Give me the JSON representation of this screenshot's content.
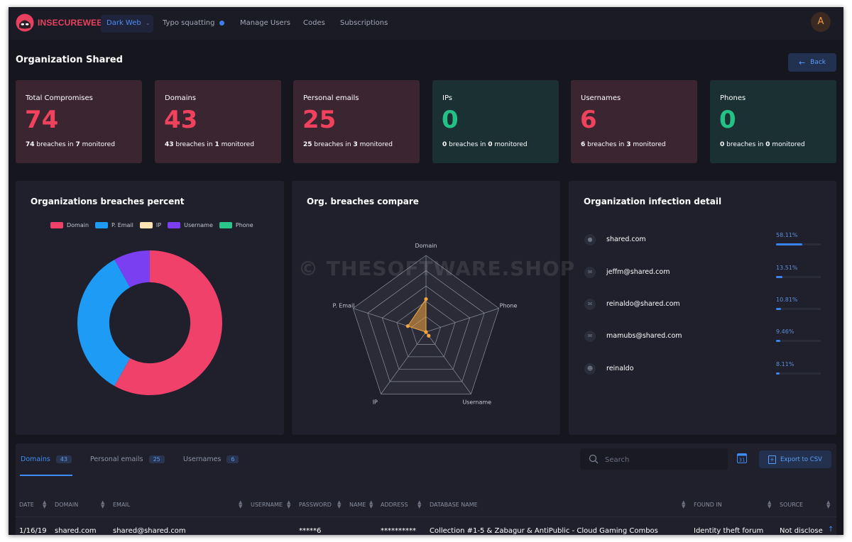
{
  "app": {
    "logo_text": "INSECUREWEB",
    "avatar_initial": "A"
  },
  "nav": [
    {
      "label": "Dark Web",
      "active": true
    },
    {
      "label": "Typo squatting"
    },
    {
      "label": "Manage Users"
    },
    {
      "label": "Codes"
    },
    {
      "label": "Subscriptions"
    }
  ],
  "page": {
    "title": "Organization Shared",
    "back_label": "Back"
  },
  "stats": [
    {
      "label": "Total Compromises",
      "value": "74",
      "breaches": "74",
      "monitored": "7"
    },
    {
      "label": "Domains",
      "value": "43",
      "breaches": "43",
      "monitored": "1"
    },
    {
      "label": "Personal emails",
      "value": "25",
      "breaches": "25",
      "monitored": "3"
    },
    {
      "label": "IPs",
      "value": "0",
      "breaches": "0",
      "monitored": "0"
    },
    {
      "label": "Usernames",
      "value": "6",
      "breaches": "6",
      "monitored": "3"
    },
    {
      "label": "Phones",
      "value": "0",
      "breaches": "0",
      "monitored": "0"
    }
  ],
  "stat_text": {
    "breaches_in": "breaches in",
    "monitored": "monitored"
  },
  "panels": {
    "donut_title": "Organizations breaches percent",
    "radar_title": "Org. breaches compare",
    "infection_title": "Organization infection detail"
  },
  "watermark": "© THESOFTWARE.SHOP",
  "chart_data": [
    {
      "type": "pie",
      "title": "Organizations breaches percent",
      "legend": "top",
      "categories": [
        "Domain",
        "P. Email",
        "IP",
        "Username",
        "Phone"
      ],
      "values": [
        43,
        25,
        0,
        6,
        0
      ],
      "colors": [
        "#f0416b",
        "#1e9bf4",
        "#fde4b2",
        "#7a3ff0",
        "#2bc48d"
      ],
      "inner_radius_ratio": 0.56
    },
    {
      "type": "radar",
      "title": "Org. breaches compare",
      "axes": [
        "Domain",
        "Phone",
        "Username",
        "IP",
        "P. Email"
      ],
      "values": [
        43,
        0,
        6,
        0,
        25
      ],
      "max": 100,
      "levels": 5,
      "color": "#f2a442"
    }
  ],
  "infection": [
    {
      "label": "shared.com",
      "percent": "58.11%",
      "fraction": 0.5811,
      "icon": "globe-icon"
    },
    {
      "label": "jeffm@shared.com",
      "percent": "13.51%",
      "fraction": 0.1351,
      "icon": "email-icon"
    },
    {
      "label": "reinaldo@shared.com",
      "percent": "10.81%",
      "fraction": 0.1081,
      "icon": "email-icon"
    },
    {
      "label": "mamubs@shared.com",
      "percent": "9.46%",
      "fraction": 0.0946,
      "icon": "email-icon"
    },
    {
      "label": "reinaldo",
      "percent": "8.11%",
      "fraction": 0.0811,
      "icon": "user-icon"
    }
  ],
  "table": {
    "tabs": [
      {
        "label": "Domains",
        "count": "43",
        "active": true
      },
      {
        "label": "Personal emails",
        "count": "25"
      },
      {
        "label": "Usernames",
        "count": "6"
      }
    ],
    "search_placeholder": "Search",
    "calendar_day": "31",
    "export_label": "Export to CSV",
    "columns": [
      "DATE",
      "DOMAIN",
      "EMAIL",
      "USERNAME",
      "PASSWORD",
      "NAME",
      "ADDRESS",
      "DATABASE NAME",
      "FOUND IN",
      "SOURCE"
    ],
    "rows": [
      {
        "date": "1/16/19",
        "domain": "shared.com",
        "email": "shared@shared.com",
        "username": "",
        "password": "*****6",
        "name": "",
        "address": "**********",
        "database_name": "Collection #1-5 & Zabagur & AntiPublic - Cloud Gaming Combos",
        "found_in": "Identity theft forum",
        "source": "Not disclose"
      }
    ]
  }
}
